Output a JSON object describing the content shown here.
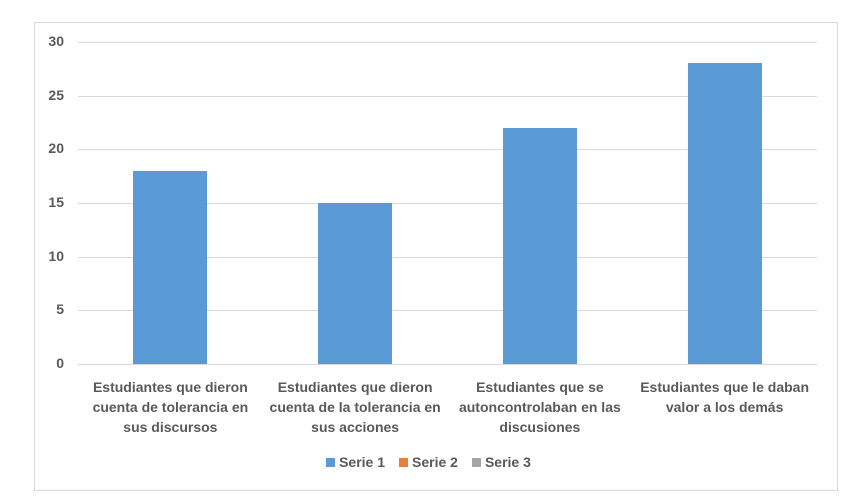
{
  "chart_data": {
    "type": "bar",
    "title": "",
    "xlabel": "",
    "ylabel": "",
    "ylim": [
      0,
      30
    ],
    "yticks": [
      0,
      5,
      10,
      15,
      20,
      25,
      30
    ],
    "grid": true,
    "legend_position": "bottom",
    "categories": [
      "Estudiantes que dieron cuenta de tolerancia en sus discursos",
      "Estudiantes que dieron cuenta de la tolerancia en sus acciones",
      "Estudiantes que se autoncontrolaban en las discusiones",
      "Estudiantes que le daban valor a los demás"
    ],
    "category_lines": [
      [
        "Estudiantes que dieron",
        "cuenta de tolerancia en",
        "sus discursos"
      ],
      [
        "Estudiantes que dieron",
        "cuenta de la tolerancia en",
        "sus acciones"
      ],
      [
        "Estudiantes que se",
        "autoncontrolaban en las",
        "discusiones"
      ],
      [
        "Estudiantes que le daban",
        "valor a los demás"
      ]
    ],
    "series": [
      {
        "name": "Serie 1",
        "color": "#5b9bd5",
        "values": [
          18,
          15,
          22,
          28
        ]
      },
      {
        "name": "Serie 2",
        "color": "#ed7d31",
        "values": [
          0,
          0,
          0,
          0
        ]
      },
      {
        "name": "Serie 3",
        "color": "#a5a5a5",
        "values": [
          0,
          0,
          0,
          0
        ]
      }
    ]
  },
  "legend": [
    {
      "label": "Serie 1",
      "color": "#5b9bd5"
    },
    {
      "label": "Serie 2",
      "color": "#ed7d31"
    },
    {
      "label": "Serie 3",
      "color": "#a5a5a5"
    }
  ]
}
